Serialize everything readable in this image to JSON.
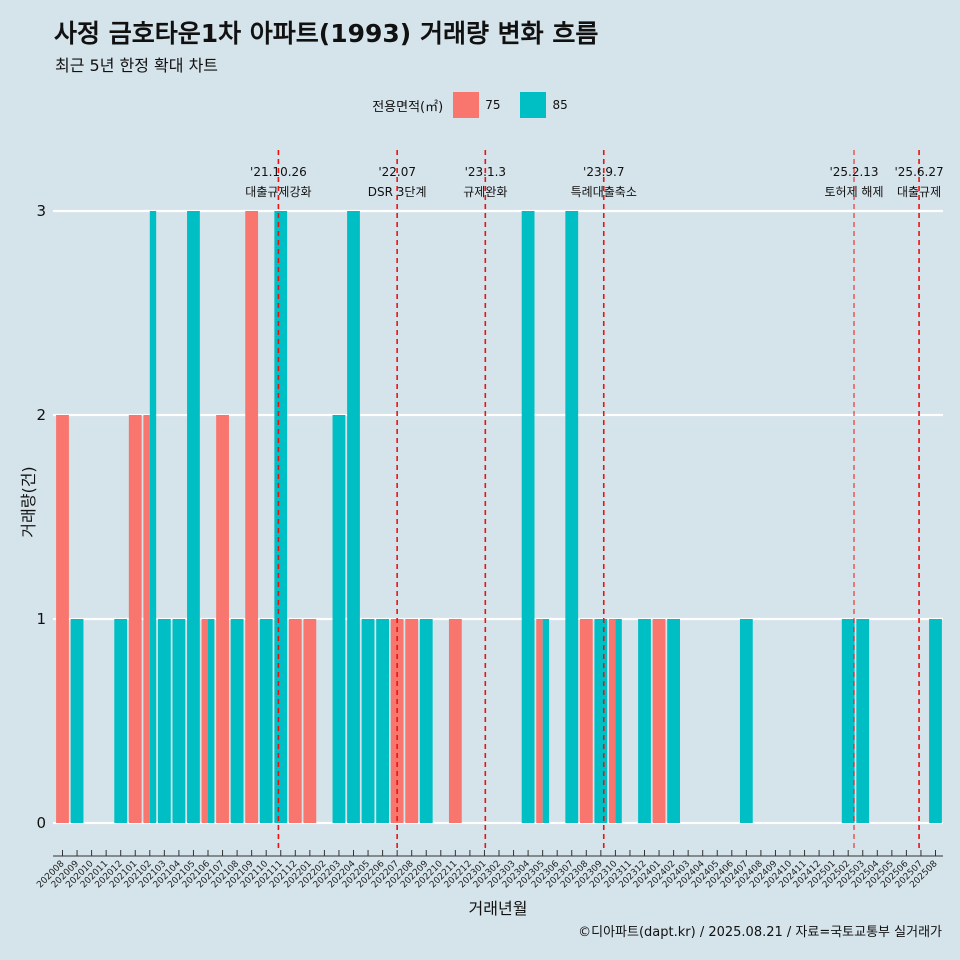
{
  "title": "사정 금호타운1차 아파트(1993) 거래량 변화 흐름",
  "subtitle": "최근 5년 한정 확대 차트",
  "caption": "©디아파트(dapt.kr) / 2025.08.21 / 자료=국토교통부 실거래가",
  "legend": {
    "title": "전용면적(㎡)",
    "items": [
      {
        "label": "75",
        "color": "#f8766d"
      },
      {
        "label": "85",
        "color": "#00bfc4"
      }
    ]
  },
  "chart_data": {
    "type": "bar",
    "title": "사정 금호타운1차 아파트(1993) 거래량 변화 흐름",
    "xlabel": "거래년월",
    "ylabel": "거래량(건)",
    "ylim": [
      0,
      3
    ],
    "yticks": [
      0,
      1,
      2,
      3
    ],
    "grid": true,
    "legend_position": "top",
    "categories": [
      "202008",
      "202009",
      "202010",
      "202011",
      "202012",
      "202101",
      "202102",
      "202103",
      "202104",
      "202105",
      "202106",
      "202107",
      "202108",
      "202109",
      "202110",
      "202111",
      "202112",
      "202201",
      "202202",
      "202203",
      "202204",
      "202205",
      "202206",
      "202207",
      "202208",
      "202209",
      "202210",
      "202211",
      "202212",
      "202301",
      "202302",
      "202303",
      "202304",
      "202305",
      "202306",
      "202307",
      "202308",
      "202309",
      "202310",
      "202311",
      "202312",
      "202401",
      "202402",
      "202403",
      "202404",
      "202405",
      "202406",
      "202407",
      "202408",
      "202409",
      "202410",
      "202411",
      "202412",
      "202501",
      "202502",
      "202503",
      "202504",
      "202505",
      "202506",
      "202507",
      "202508"
    ],
    "series": [
      {
        "name": "75",
        "color": "#f8766d",
        "values": [
          2,
          0,
          0,
          0,
          0,
          2,
          2,
          0,
          0,
          0,
          1,
          2,
          0,
          3,
          0,
          0,
          1,
          1,
          0,
          0,
          0,
          0,
          0,
          1,
          1,
          0,
          0,
          1,
          0,
          0,
          0,
          0,
          0,
          1,
          0,
          0,
          1,
          0,
          1,
          0,
          0,
          1,
          0,
          0,
          0,
          0,
          0,
          0,
          0,
          0,
          0,
          0,
          0,
          0,
          0,
          0,
          0,
          0,
          0,
          0,
          0
        ]
      },
      {
        "name": "85",
        "color": "#00bfc4",
        "values": [
          0,
          1,
          0,
          0,
          1,
          0,
          3,
          1,
          1,
          3,
          1,
          0,
          1,
          0,
          1,
          3,
          0,
          0,
          0,
          2,
          3,
          1,
          1,
          0,
          0,
          1,
          0,
          0,
          0,
          0,
          0,
          0,
          3,
          1,
          0,
          3,
          0,
          1,
          1,
          0,
          1,
          0,
          1,
          0,
          0,
          0,
          0,
          1,
          0,
          0,
          0,
          0,
          0,
          0,
          1,
          1,
          0,
          0,
          0,
          0,
          1
        ]
      }
    ],
    "events": [
      {
        "date": "'21.10.26",
        "label": "대출규제강화",
        "month_index": 14.84
      },
      {
        "date": "'22.07",
        "label": "DSR 3단계",
        "month_index": 23.0
      },
      {
        "date": "'23.1.3",
        "label": "규제완화",
        "month_index": 29.06
      },
      {
        "date": "'23.9.7",
        "label": "특례대출축소",
        "month_index": 37.2
      },
      {
        "date": "'25.2.13",
        "label": "토허제 해제",
        "month_index": 54.4
      },
      {
        "date": "'25.6.27",
        "label": "대출규제",
        "month_index": 58.87
      }
    ]
  }
}
